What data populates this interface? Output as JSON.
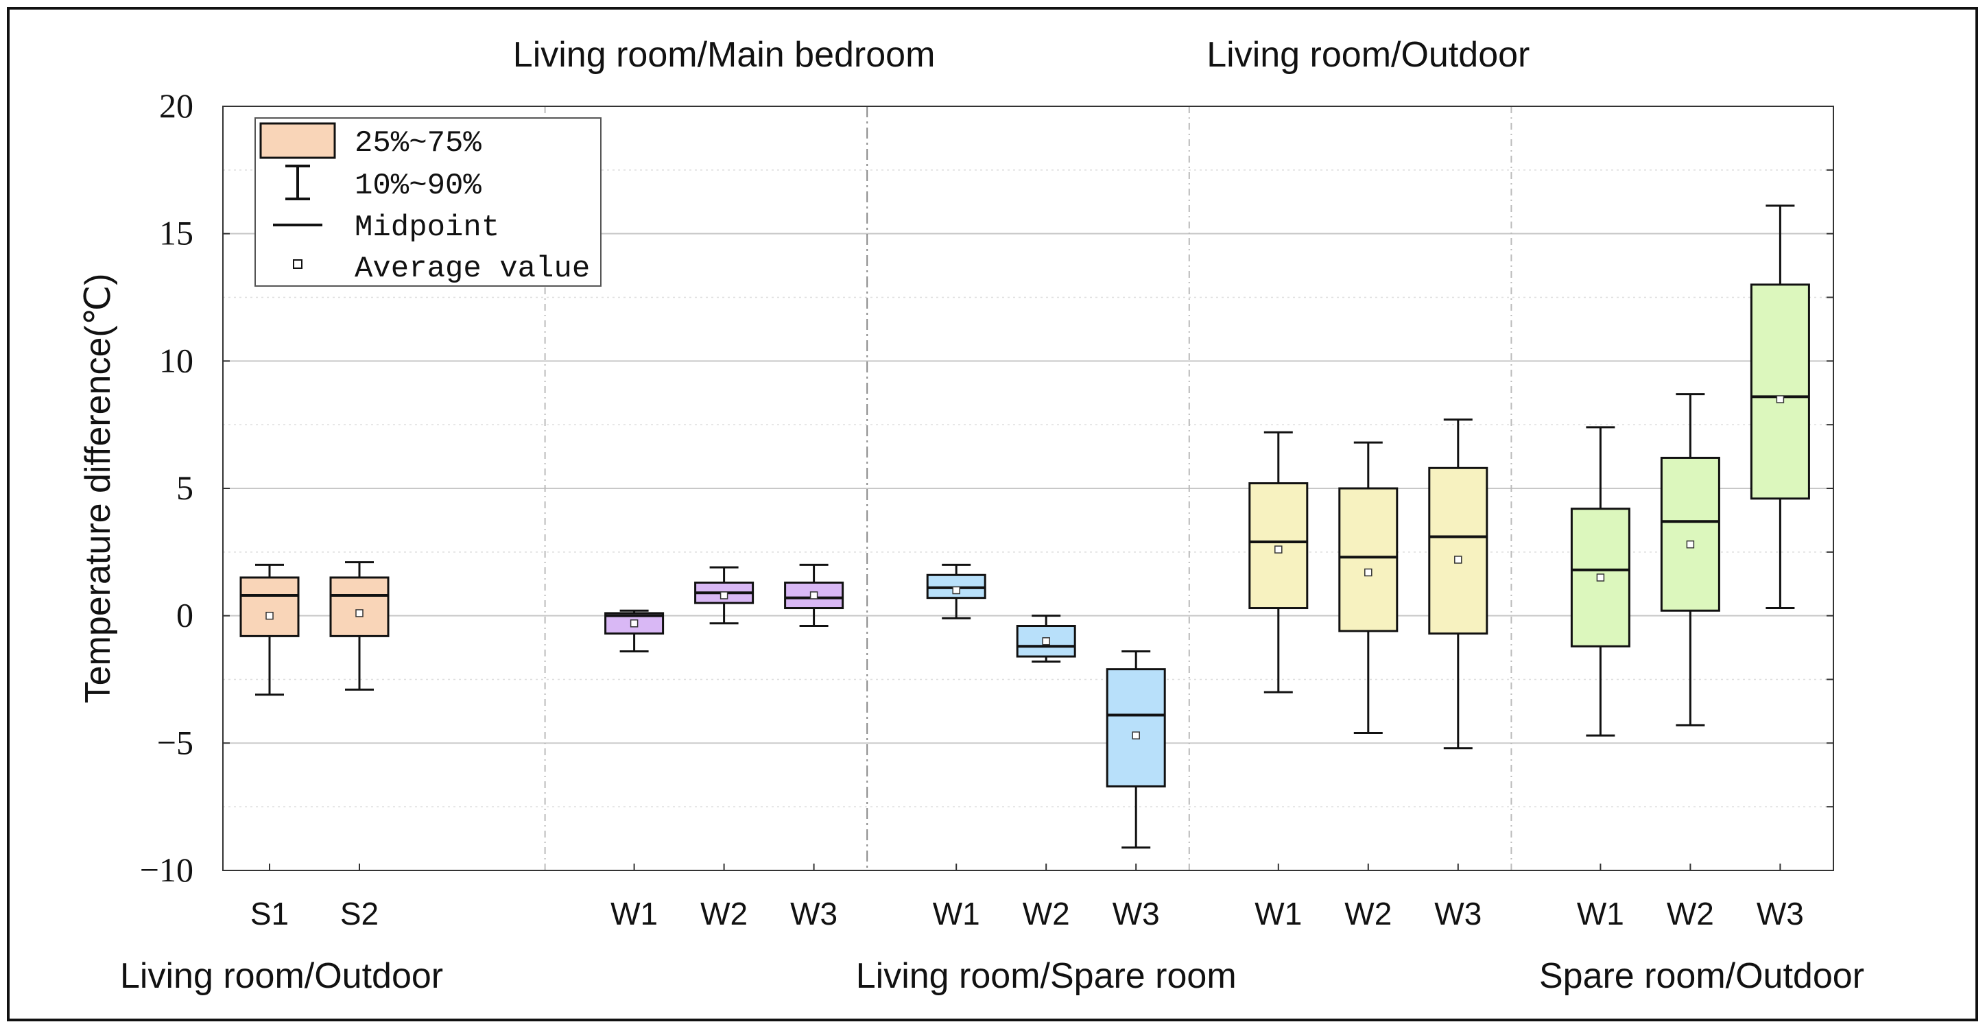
{
  "chart_data": {
    "type": "box",
    "ylabel": "Temperature difference(℃)",
    "ylim": [
      -10,
      20
    ],
    "yticks": [
      "20",
      "15",
      "10",
      "5",
      "0",
      "−5",
      "−10"
    ],
    "grid": true,
    "legend": {
      "position": "top-left",
      "entries": [
        {
          "kind": "box",
          "label": "25%~75%"
        },
        {
          "kind": "whisker",
          "label": "10%~90%"
        },
        {
          "kind": "median",
          "label": "Midpoint"
        },
        {
          "kind": "mean",
          "label": "Average value"
        }
      ]
    },
    "groups": [
      {
        "name": "Living room/Outdoor",
        "label_position": "bottom",
        "color": "#f9d5b8",
        "boxes": [
          {
            "name": "S1",
            "p10": -3.1,
            "q1": -0.8,
            "median": 0.8,
            "q3": 1.5,
            "p90": 2.0,
            "mean": 0.0
          },
          {
            "name": "S2",
            "p10": -2.9,
            "q1": -0.8,
            "median": 0.8,
            "q3": 1.5,
            "p90": 2.1,
            "mean": 0.1
          }
        ]
      },
      {
        "name": "Living room/Main bedroom",
        "label_position": "top",
        "color": "#d9b8f5",
        "boxes": [
          {
            "name": "W1",
            "p10": -1.4,
            "q1": -0.7,
            "median": 0.0,
            "q3": 0.1,
            "p90": 0.2,
            "mean": -0.3
          },
          {
            "name": "W2",
            "p10": -0.3,
            "q1": 0.5,
            "median": 0.9,
            "q3": 1.3,
            "p90": 1.9,
            "mean": 0.8
          },
          {
            "name": "W3",
            "p10": -0.4,
            "q1": 0.3,
            "median": 0.7,
            "q3": 1.3,
            "p90": 2.0,
            "mean": 0.8
          }
        ]
      },
      {
        "name": "Living room/Spare room",
        "label_position": "bottom",
        "color": "#b8e0fa",
        "boxes": [
          {
            "name": "W1",
            "p10": -0.1,
            "q1": 0.7,
            "median": 1.1,
            "q3": 1.6,
            "p90": 2.0,
            "mean": 1.0
          },
          {
            "name": "W2",
            "p10": -1.8,
            "q1": -1.6,
            "median": -1.2,
            "q3": -0.4,
            "p90": 0.0,
            "mean": -1.0
          },
          {
            "name": "W3",
            "p10": -9.1,
            "q1": -6.7,
            "median": -3.9,
            "q3": -2.1,
            "p90": -1.4,
            "mean": -4.7
          }
        ]
      },
      {
        "name": "Living room/Outdoor",
        "label_position": "top",
        "color": "#f7f2c0",
        "boxes": [
          {
            "name": "W1",
            "p10": -3.0,
            "q1": 0.3,
            "median": 2.9,
            "q3": 5.2,
            "p90": 7.2,
            "mean": 2.6
          },
          {
            "name": "W2",
            "p10": -4.6,
            "q1": -0.6,
            "median": 2.3,
            "q3": 5.0,
            "p90": 6.8,
            "mean": 1.7
          },
          {
            "name": "W3",
            "p10": -5.2,
            "q1": -0.7,
            "median": 3.1,
            "q3": 5.8,
            "p90": 7.7,
            "mean": 2.2
          }
        ]
      },
      {
        "name": "Spare room/Outdoor",
        "label_position": "bottom",
        "color": "#dcf7bd",
        "boxes": [
          {
            "name": "W1",
            "p10": -4.7,
            "q1": -1.2,
            "median": 1.8,
            "q3": 4.2,
            "p90": 7.4,
            "mean": 1.5
          },
          {
            "name": "W2",
            "p10": -4.3,
            "q1": 0.2,
            "median": 3.7,
            "q3": 6.2,
            "p90": 8.7,
            "mean": 2.8
          },
          {
            "name": "W3",
            "p10": 0.3,
            "q1": 4.6,
            "median": 8.6,
            "q3": 13.0,
            "p90": 16.1,
            "mean": 8.5
          }
        ]
      }
    ]
  }
}
